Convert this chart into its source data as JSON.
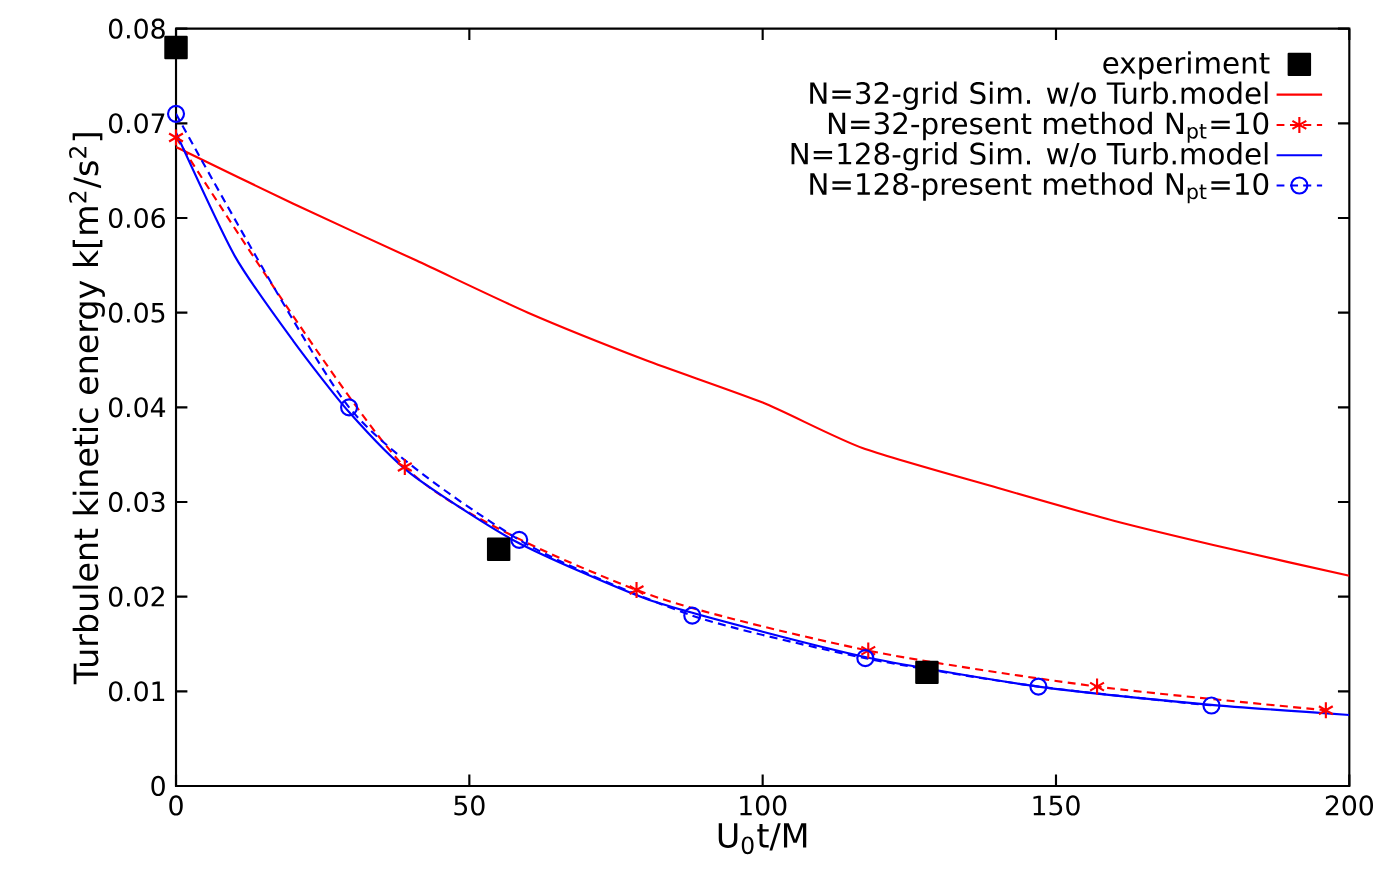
{
  "chart_data": {
    "type": "line",
    "xlabel": "U$_{0}$t/M",
    "ylabel": "Turbulent kinetic energy k[m$^{2}$/s$^{2}$]",
    "xlim": [
      0,
      200
    ],
    "ylim": [
      0,
      0.08
    ],
    "xticks": [
      0,
      50,
      100,
      150,
      200
    ],
    "yticks": [
      0,
      0.01,
      0.02,
      0.03,
      0.04,
      0.05,
      0.06,
      0.07,
      0.08
    ],
    "legend": "top right",
    "grid": false,
    "series": [
      {
        "name": "experiment",
        "type": "scatter",
        "color": "#000000",
        "marker": "square",
        "x": [
          0,
          55,
          128
        ],
        "values": [
          0.078,
          0.025,
          0.012
        ]
      },
      {
        "name": "N=32-grid Sim. w/o Turb.model",
        "color": "#ff0000",
        "line_style": "solid",
        "marker": "none",
        "x": [
          0,
          20,
          41,
          60,
          80,
          100,
          117,
          140,
          160,
          180,
          200
        ],
        "values": [
          0.0675,
          0.0615,
          0.0555,
          0.05,
          0.045,
          0.0405,
          0.0357,
          0.0315,
          0.028,
          0.025,
          0.0222
        ]
      },
      {
        "name": "N=32-present method N$_{pt}$=10",
        "color": "#ff0000",
        "line_style": "dashed",
        "marker": "cross",
        "x": [
          0,
          39,
          78.5,
          118,
          157,
          196
        ],
        "values": [
          0.0685,
          0.0337,
          0.0207,
          0.0143,
          0.0105,
          0.008
        ]
      },
      {
        "name": "N=128-grid Sim. w/o Turb.model",
        "color": "#0000ff",
        "line_style": "solid",
        "marker": "none",
        "x": [
          0,
          10,
          20,
          29.5,
          40,
          58,
          80,
          100,
          120,
          147,
          176,
          200
        ],
        "values": [
          0.069,
          0.056,
          0.047,
          0.0395,
          0.033,
          0.0258,
          0.0198,
          0.0163,
          0.0133,
          0.0105,
          0.0086,
          0.0075
        ]
      },
      {
        "name": "N=128-present method N$_{pt}$=10",
        "color": "#0000ff",
        "line_style": "dashed",
        "marker": "circle",
        "x": [
          0,
          29.5,
          58.5,
          88,
          117.5,
          147,
          176.5
        ],
        "values": [
          0.071,
          0.04,
          0.026,
          0.018,
          0.0135,
          0.0105,
          0.0085
        ]
      }
    ]
  }
}
